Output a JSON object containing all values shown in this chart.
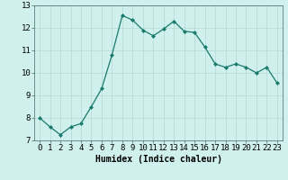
{
  "x": [
    0,
    1,
    2,
    3,
    4,
    5,
    6,
    7,
    8,
    9,
    10,
    11,
    12,
    13,
    14,
    15,
    16,
    17,
    18,
    19,
    20,
    21,
    22,
    23
  ],
  "y": [
    8.0,
    7.6,
    7.25,
    7.6,
    7.75,
    8.5,
    9.3,
    10.8,
    12.55,
    12.35,
    11.9,
    11.65,
    11.95,
    12.3,
    11.85,
    11.8,
    11.15,
    10.4,
    10.25,
    10.4,
    10.25,
    10.0,
    10.25,
    9.55
  ],
  "line_color": "#1a7a6e",
  "marker": "D",
  "marker_size": 2,
  "bg_color": "#cff0ec",
  "grid_color": "#b8dcd8",
  "xlabel": "Humidex (Indice chaleur)",
  "ylim": [
    7,
    13
  ],
  "xlim": [
    -0.5,
    23.5
  ],
  "yticks": [
    7,
    8,
    9,
    10,
    11,
    12,
    13
  ],
  "xtick_labels": [
    "0",
    "1",
    "2",
    "3",
    "4",
    "5",
    "6",
    "7",
    "8",
    "9",
    "10",
    "11",
    "12",
    "13",
    "14",
    "15",
    "16",
    "17",
    "18",
    "19",
    "20",
    "21",
    "22",
    "23"
  ],
  "xlabel_fontsize": 7,
  "tick_fontsize": 6.5,
  "linewidth": 0.9
}
